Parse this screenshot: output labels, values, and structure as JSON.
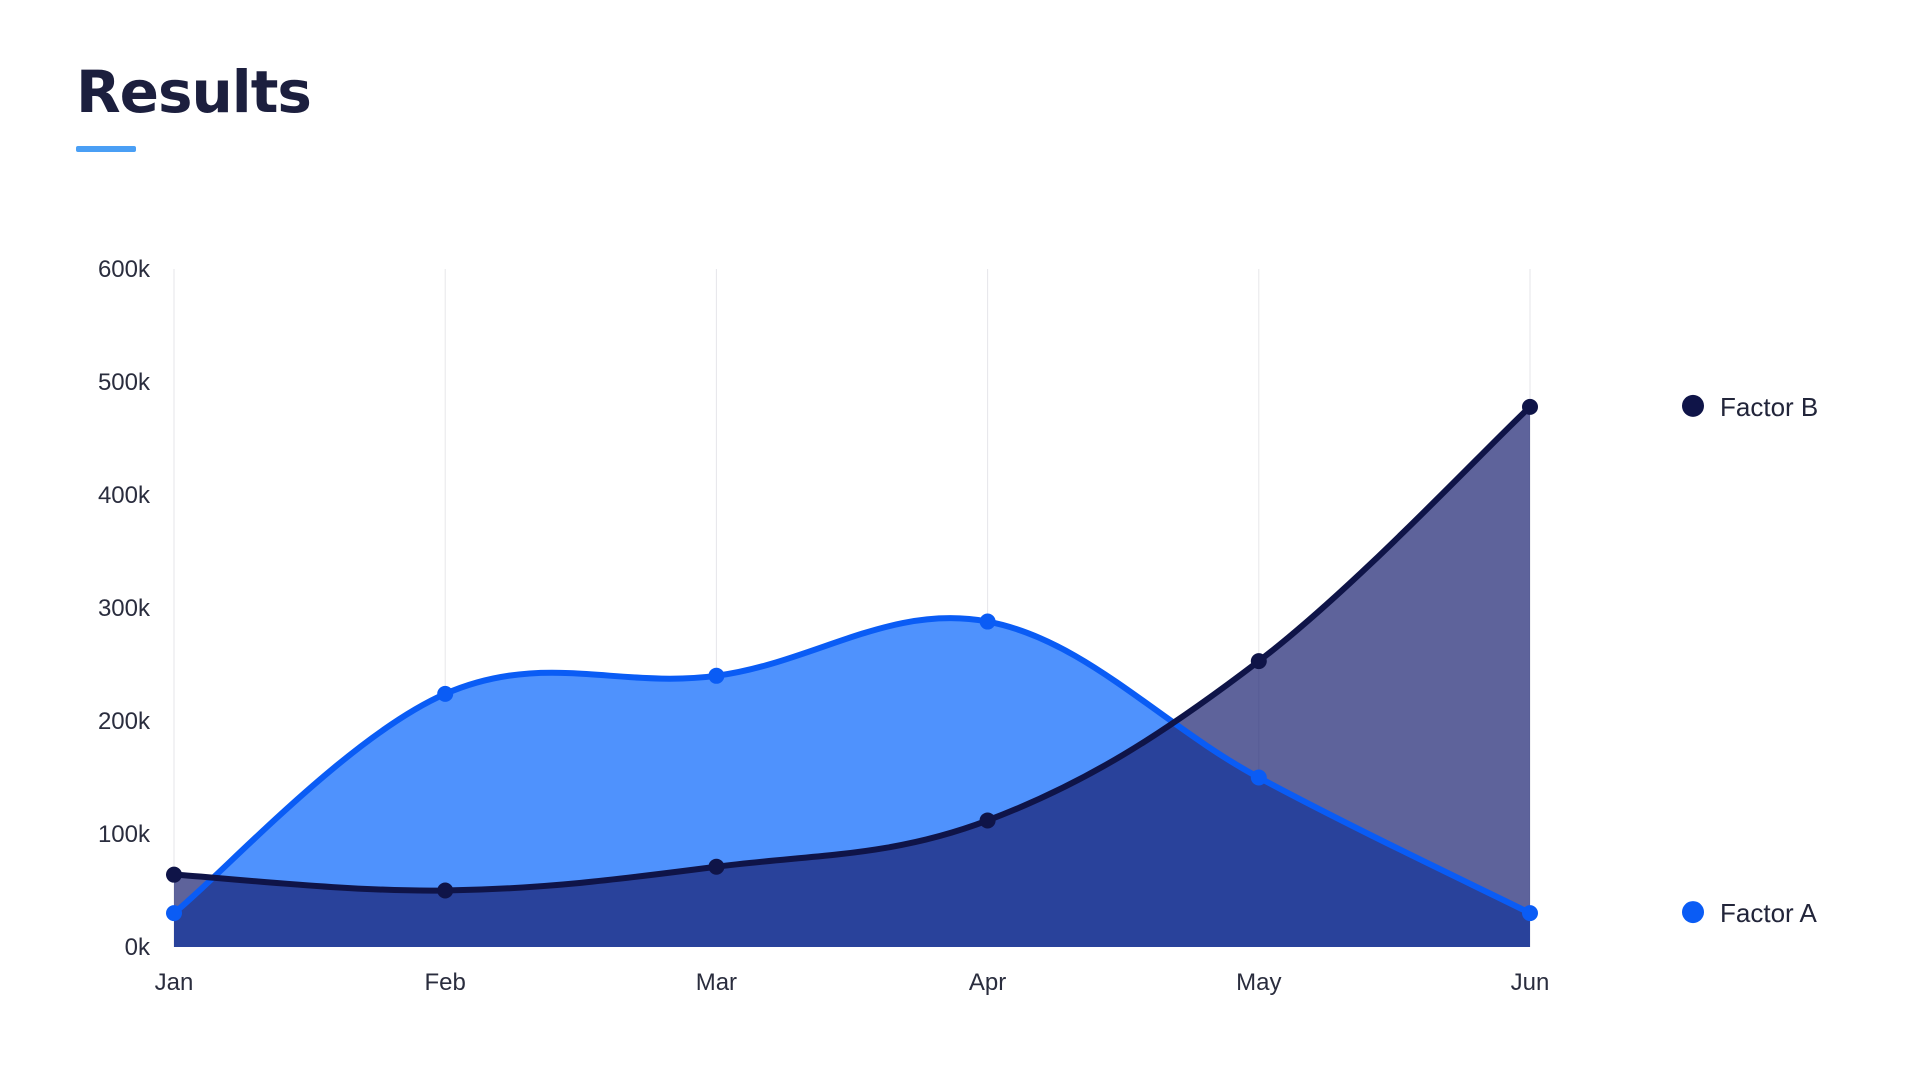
{
  "header": {
    "title": "Results"
  },
  "colors": {
    "accent_bar": "#4a9ff5",
    "factor_a_line": "#0a5cf5",
    "factor_a_fill": "#4f92fd",
    "factor_b_line": "#0f1448",
    "factor_b_fill": "#1a2170",
    "grid": "#e6e6ea"
  },
  "chart_data": {
    "type": "area",
    "categories": [
      "Jan",
      "Feb",
      "Mar",
      "Apr",
      "May",
      "Jun"
    ],
    "ylim": [
      0,
      600000
    ],
    "yticks": [
      0,
      100000,
      200000,
      300000,
      400000,
      500000,
      600000
    ],
    "ytick_labels": [
      "0k",
      "100k",
      "200k",
      "300k",
      "400k",
      "500k",
      "600k"
    ],
    "grid": {
      "vertical": true,
      "horizontal": false
    },
    "legend_position": "right",
    "series": [
      {
        "name": "Factor A",
        "values": [
          30000,
          224000,
          240000,
          288000,
          150000,
          30000
        ]
      },
      {
        "name": "Factor B",
        "values": [
          64000,
          50000,
          71000,
          112000,
          253000,
          478000
        ]
      }
    ],
    "title": "Results",
    "xlabel": "",
    "ylabel": ""
  }
}
